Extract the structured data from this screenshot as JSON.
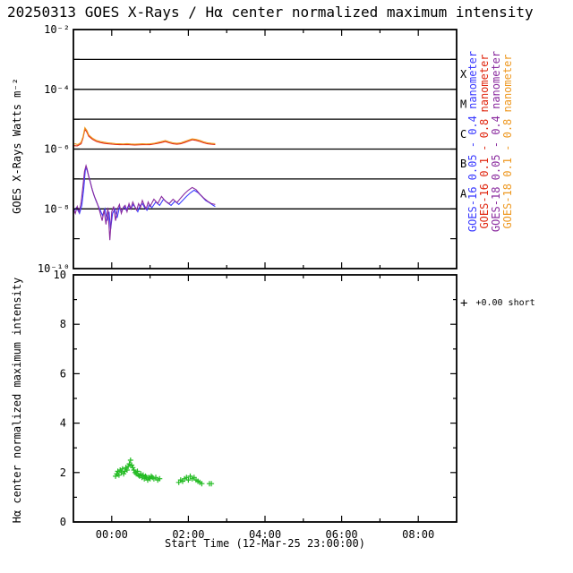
{
  "title": "20250313 GOES X-Rays / Hα center normalized maximum intensity",
  "x_axis": {
    "label": "Start Time (12-Mar-25 23:00:00)",
    "range_hours": [
      0,
      10
    ],
    "major_ticks": [
      {
        "t": 1,
        "label": "00:00"
      },
      {
        "t": 3,
        "label": "02:00"
      },
      {
        "t": 5,
        "label": "04:00"
      },
      {
        "t": 7,
        "label": "06:00"
      },
      {
        "t": 9,
        "label": "08:00"
      }
    ],
    "minor_tick_every_hours": 1
  },
  "chart_data": [
    {
      "type": "line",
      "panel": "top",
      "ylabel": "GOES X-Rays Watts m⁻²",
      "yscale": "log",
      "ylim": [
        1e-10,
        0.01
      ],
      "ytick_labels": [
        {
          "exp": -2,
          "label": "10⁻²"
        },
        {
          "exp": -4,
          "label": "10⁻⁴"
        },
        {
          "exp": -6,
          "label": "10⁻⁶"
        },
        {
          "exp": -8,
          "label": "10⁻⁸"
        },
        {
          "exp": -10,
          "label": "10⁻¹⁰"
        }
      ],
      "grid_exponents": [
        -3,
        -4,
        -5,
        -6,
        -7,
        -8
      ],
      "flare_class_labels": [
        {
          "label": "A",
          "exp": -7.5
        },
        {
          "label": "B",
          "exp": -6.5
        },
        {
          "label": "C",
          "exp": -5.5
        },
        {
          "label": "M",
          "exp": -4.5
        },
        {
          "label": "X",
          "exp": -3.5
        }
      ],
      "legend_position": "right-vertical",
      "series": [
        {
          "name": "GOES-16 0.05 - 0.4 nanometer",
          "color": "#3a3aff",
          "points": [
            [
              0.0,
              8e-09
            ],
            [
              0.08,
              1.1e-08
            ],
            [
              0.16,
              7e-09
            ],
            [
              0.22,
              1.3e-08
            ],
            [
              0.27,
              5e-08
            ],
            [
              0.31,
              2e-07
            ],
            [
              0.34,
              2.3e-07
            ],
            [
              0.38,
              1.5e-07
            ],
            [
              0.43,
              9e-08
            ],
            [
              0.48,
              5e-08
            ],
            [
              0.53,
              3e-08
            ],
            [
              0.58,
              2e-08
            ],
            [
              0.64,
              1.3e-08
            ],
            [
              0.7,
              9e-09
            ],
            [
              0.76,
              6e-09
            ],
            [
              0.82,
              1e-08
            ],
            [
              0.88,
              4e-09
            ],
            [
              0.93,
              8e-09
            ],
            [
              0.97,
              2e-09
            ],
            [
              1.02,
              7e-09
            ],
            [
              1.08,
              1e-08
            ],
            [
              1.14,
              5e-09
            ],
            [
              1.2,
              1.1e-08
            ],
            [
              1.26,
              8e-09
            ],
            [
              1.32,
              1.2e-08
            ],
            [
              1.38,
              9e-09
            ],
            [
              1.44,
              1.3e-08
            ],
            [
              1.5,
              1e-08
            ],
            [
              1.56,
              1.4e-08
            ],
            [
              1.62,
              1.1e-08
            ],
            [
              1.68,
              8e-09
            ],
            [
              1.74,
              1.3e-08
            ],
            [
              1.8,
              1.5e-08
            ],
            [
              1.86,
              1.1e-08
            ],
            [
              1.92,
              9e-09
            ],
            [
              1.98,
              1.4e-08
            ],
            [
              2.05,
              1.1e-08
            ],
            [
              2.15,
              1.7e-08
            ],
            [
              2.25,
              1.3e-08
            ],
            [
              2.35,
              2.1e-08
            ],
            [
              2.45,
              1.6e-08
            ],
            [
              2.55,
              1.3e-08
            ],
            [
              2.65,
              1.8e-08
            ],
            [
              2.75,
              1.4e-08
            ],
            [
              2.85,
              1.9e-08
            ],
            [
              2.95,
              2.6e-08
            ],
            [
              3.05,
              3.4e-08
            ],
            [
              3.15,
              4.2e-08
            ],
            [
              3.25,
              3.5e-08
            ],
            [
              3.35,
              2.6e-08
            ],
            [
              3.45,
              1.9e-08
            ],
            [
              3.55,
              1.6e-08
            ],
            [
              3.65,
              1.3e-08
            ],
            [
              3.7,
              1.2e-08
            ]
          ]
        },
        {
          "name": "GOES-16 0.1 - 0.8 nanometer",
          "color": "#e02811",
          "points": [
            [
              0.0,
              1.3e-06
            ],
            [
              0.1,
              1.28e-06
            ],
            [
              0.2,
              1.5e-06
            ],
            [
              0.25,
              2.3e-06
            ],
            [
              0.3,
              4.6e-06
            ],
            [
              0.35,
              3.7e-06
            ],
            [
              0.4,
              2.7e-06
            ],
            [
              0.5,
              2.1e-06
            ],
            [
              0.6,
              1.8e-06
            ],
            [
              0.7,
              1.65e-06
            ],
            [
              0.8,
              1.56e-06
            ],
            [
              0.9,
              1.5e-06
            ],
            [
              1.0,
              1.46e-06
            ],
            [
              1.2,
              1.4e-06
            ],
            [
              1.4,
              1.42e-06
            ],
            [
              1.6,
              1.36e-06
            ],
            [
              1.8,
              1.4e-06
            ],
            [
              2.0,
              1.4e-06
            ],
            [
              2.2,
              1.56e-06
            ],
            [
              2.3,
              1.66e-06
            ],
            [
              2.4,
              1.78e-06
            ],
            [
              2.5,
              1.62e-06
            ],
            [
              2.6,
              1.5e-06
            ],
            [
              2.7,
              1.45e-06
            ],
            [
              2.8,
              1.5e-06
            ],
            [
              2.9,
              1.66e-06
            ],
            [
              3.0,
              1.85e-06
            ],
            [
              3.1,
              2.05e-06
            ],
            [
              3.2,
              1.95e-06
            ],
            [
              3.3,
              1.8e-06
            ],
            [
              3.4,
              1.62e-06
            ],
            [
              3.5,
              1.5e-06
            ],
            [
              3.6,
              1.45e-06
            ],
            [
              3.7,
              1.42e-06
            ]
          ]
        },
        {
          "name": "GOES-18 0.05 - 0.4 nanometer",
          "color": "#8a2b9e",
          "points": [
            [
              0.0,
              1e-08
            ],
            [
              0.05,
              7e-09
            ],
            [
              0.1,
              1.2e-08
            ],
            [
              0.15,
              8e-09
            ],
            [
              0.2,
              1.6e-08
            ],
            [
              0.25,
              6e-08
            ],
            [
              0.29,
              1.8e-07
            ],
            [
              0.33,
              2.8e-07
            ],
            [
              0.36,
              2.1e-07
            ],
            [
              0.4,
              1.2e-07
            ],
            [
              0.45,
              7e-08
            ],
            [
              0.5,
              4e-08
            ],
            [
              0.55,
              2.6e-08
            ],
            [
              0.6,
              1.8e-08
            ],
            [
              0.65,
              1.2e-08
            ],
            [
              0.7,
              7e-09
            ],
            [
              0.75,
              4e-09
            ],
            [
              0.8,
              9e-09
            ],
            [
              0.85,
              3e-09
            ],
            [
              0.9,
              1.1e-08
            ],
            [
              0.95,
              9e-10
            ],
            [
              1.0,
              8e-09
            ],
            [
              1.05,
              1.2e-08
            ],
            [
              1.1,
              4e-09
            ],
            [
              1.15,
              1e-08
            ],
            [
              1.2,
              1.4e-08
            ],
            [
              1.25,
              7e-09
            ],
            [
              1.3,
              1.1e-08
            ],
            [
              1.35,
              1.3e-08
            ],
            [
              1.4,
              8e-09
            ],
            [
              1.45,
              1.5e-08
            ],
            [
              1.5,
              1e-08
            ],
            [
              1.55,
              1.7e-08
            ],
            [
              1.6,
              1.2e-08
            ],
            [
              1.65,
              9e-09
            ],
            [
              1.7,
              1.5e-08
            ],
            [
              1.75,
              1.1e-08
            ],
            [
              1.8,
              1.9e-08
            ],
            [
              1.85,
              1.3e-08
            ],
            [
              1.9,
              1e-08
            ],
            [
              1.95,
              1.7e-08
            ],
            [
              2.0,
              1.2e-08
            ],
            [
              2.1,
              2.1e-08
            ],
            [
              2.2,
              1.5e-08
            ],
            [
              2.3,
              2.6e-08
            ],
            [
              2.4,
              1.8e-08
            ],
            [
              2.5,
              1.5e-08
            ],
            [
              2.6,
              2.1e-08
            ],
            [
              2.7,
              1.6e-08
            ],
            [
              2.8,
              2.3e-08
            ],
            [
              2.9,
              3.2e-08
            ],
            [
              3.0,
              4.2e-08
            ],
            [
              3.1,
              5.2e-08
            ],
            [
              3.2,
              4.4e-08
            ],
            [
              3.3,
              3.1e-08
            ],
            [
              3.4,
              2.3e-08
            ],
            [
              3.5,
              1.8e-08
            ],
            [
              3.6,
              1.5e-08
            ],
            [
              3.7,
              1.4e-08
            ]
          ]
        },
        {
          "name": "GOES-18 0.1 - 0.8 nanometer",
          "color": "#ee9922",
          "points": [
            [
              0.0,
              1.45e-06
            ],
            [
              0.05,
              1.5e-06
            ],
            [
              0.1,
              1.42e-06
            ],
            [
              0.15,
              1.5e-06
            ],
            [
              0.2,
              1.7e-06
            ],
            [
              0.25,
              2.6e-06
            ],
            [
              0.3,
              5.2e-06
            ],
            [
              0.35,
              4.2e-06
            ],
            [
              0.4,
              3e-06
            ],
            [
              0.5,
              2.3e-06
            ],
            [
              0.6,
              1.95e-06
            ],
            [
              0.7,
              1.8e-06
            ],
            [
              0.8,
              1.7e-06
            ],
            [
              0.9,
              1.62e-06
            ],
            [
              1.0,
              1.58e-06
            ],
            [
              1.1,
              1.52e-06
            ],
            [
              1.2,
              1.5e-06
            ],
            [
              1.3,
              1.48e-06
            ],
            [
              1.4,
              1.52e-06
            ],
            [
              1.5,
              1.48e-06
            ],
            [
              1.6,
              1.45e-06
            ],
            [
              1.7,
              1.48e-06
            ],
            [
              1.8,
              1.5e-06
            ],
            [
              1.9,
              1.48e-06
            ],
            [
              2.0,
              1.5e-06
            ],
            [
              2.1,
              1.56e-06
            ],
            [
              2.2,
              1.68e-06
            ],
            [
              2.3,
              1.8e-06
            ],
            [
              2.4,
              1.92e-06
            ],
            [
              2.5,
              1.75e-06
            ],
            [
              2.6,
              1.62e-06
            ],
            [
              2.7,
              1.56e-06
            ],
            [
              2.8,
              1.62e-06
            ],
            [
              2.9,
              1.8e-06
            ],
            [
              3.0,
              2e-06
            ],
            [
              3.1,
              2.2e-06
            ],
            [
              3.2,
              2.1e-06
            ],
            [
              3.3,
              1.95e-06
            ],
            [
              3.4,
              1.75e-06
            ],
            [
              3.5,
              1.62e-06
            ],
            [
              3.6,
              1.56e-06
            ],
            [
              3.7,
              1.52e-06
            ]
          ]
        }
      ]
    },
    {
      "type": "scatter",
      "panel": "bottom",
      "ylabel": "Hα center normalized maximum intensity",
      "ylim": [
        0,
        10
      ],
      "ytick_labels": [
        {
          "v": 0,
          "label": "0"
        },
        {
          "v": 2,
          "label": "2"
        },
        {
          "v": 4,
          "label": "4"
        },
        {
          "v": 6,
          "label": "6"
        },
        {
          "v": 8,
          "label": "8"
        },
        {
          "v": 10,
          "label": "10"
        }
      ],
      "marker": "plus",
      "marker_glyph": "+",
      "legend_label": "+0.00 short",
      "series": [
        {
          "name": "+0.00 short",
          "color": "#22bb22",
          "points": [
            [
              1.1,
              1.85
            ],
            [
              1.13,
              1.95
            ],
            [
              1.16,
              2.05
            ],
            [
              1.19,
              1.9
            ],
            [
              1.22,
              2.1
            ],
            [
              1.25,
              2.0
            ],
            [
              1.28,
              2.15
            ],
            [
              1.31,
              1.95
            ],
            [
              1.34,
              2.05
            ],
            [
              1.37,
              2.2
            ],
            [
              1.4,
              2.1
            ],
            [
              1.43,
              2.25
            ],
            [
              1.46,
              2.35
            ],
            [
              1.49,
              2.5
            ],
            [
              1.52,
              2.3
            ],
            [
              1.55,
              2.2
            ],
            [
              1.58,
              2.1
            ],
            [
              1.61,
              2.0
            ],
            [
              1.64,
              1.95
            ],
            [
              1.67,
              2.05
            ],
            [
              1.7,
              1.9
            ],
            [
              1.73,
              1.85
            ],
            [
              1.76,
              1.95
            ],
            [
              1.79,
              1.8
            ],
            [
              1.82,
              1.9
            ],
            [
              1.85,
              1.75
            ],
            [
              1.88,
              1.85
            ],
            [
              1.91,
              1.8
            ],
            [
              1.94,
              1.7
            ],
            [
              1.97,
              1.8
            ],
            [
              2.0,
              1.75
            ],
            [
              2.03,
              1.85
            ],
            [
              2.06,
              1.8
            ],
            [
              2.1,
              1.75
            ],
            [
              2.15,
              1.8
            ],
            [
              2.2,
              1.7
            ],
            [
              2.25,
              1.75
            ],
            [
              2.75,
              1.6
            ],
            [
              2.8,
              1.7
            ],
            [
              2.85,
              1.65
            ],
            [
              2.9,
              1.75
            ],
            [
              2.95,
              1.8
            ],
            [
              3.0,
              1.7
            ],
            [
              3.05,
              1.85
            ],
            [
              3.1,
              1.75
            ],
            [
              3.15,
              1.8
            ],
            [
              3.2,
              1.7
            ],
            [
              3.25,
              1.65
            ],
            [
              3.3,
              1.6
            ],
            [
              3.35,
              1.55
            ],
            [
              3.55,
              1.55
            ],
            [
              3.6,
              1.55
            ]
          ]
        }
      ]
    }
  ]
}
